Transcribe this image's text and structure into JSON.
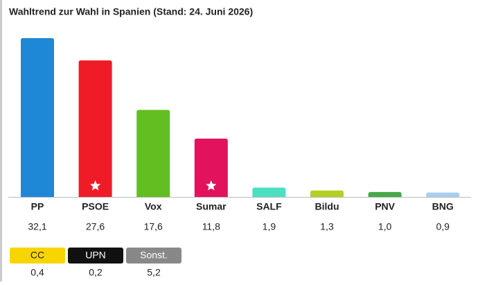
{
  "chart_data": {
    "type": "bar",
    "title": "Wahltrend zur Wahl in Spanien (Stand: 24. Juni 2026)",
    "categories": [
      "PP",
      "PSOE",
      "Vox",
      "Sumar",
      "SALF",
      "Bildu",
      "PNV",
      "BNG"
    ],
    "values": [
      32.1,
      27.6,
      17.6,
      11.8,
      1.9,
      1.3,
      1.0,
      0.9
    ],
    "value_labels": [
      "32,1",
      "27,6",
      "17,6",
      "11,8",
      "1,9",
      "1,3",
      "1,0",
      "0,9"
    ],
    "colors": [
      "#1e88d6",
      "#ef1c27",
      "#63be21",
      "#e3125c",
      "#4de0c0",
      "#b5cf24",
      "#45a848",
      "#a9cff0"
    ],
    "starred": [
      false,
      true,
      false,
      true,
      false,
      false,
      false,
      false
    ],
    "others": {
      "categories": [
        "CC",
        "UPN",
        "Sonst."
      ],
      "values": [
        0.4,
        0.2,
        5.2
      ],
      "value_labels": [
        "0,4",
        "0,2",
        "5,2"
      ],
      "colors": [
        "#f7d500",
        "#111111",
        "#888888"
      ],
      "text_colors": [
        "#222222",
        "#ffffff",
        "#ffffff"
      ]
    }
  }
}
